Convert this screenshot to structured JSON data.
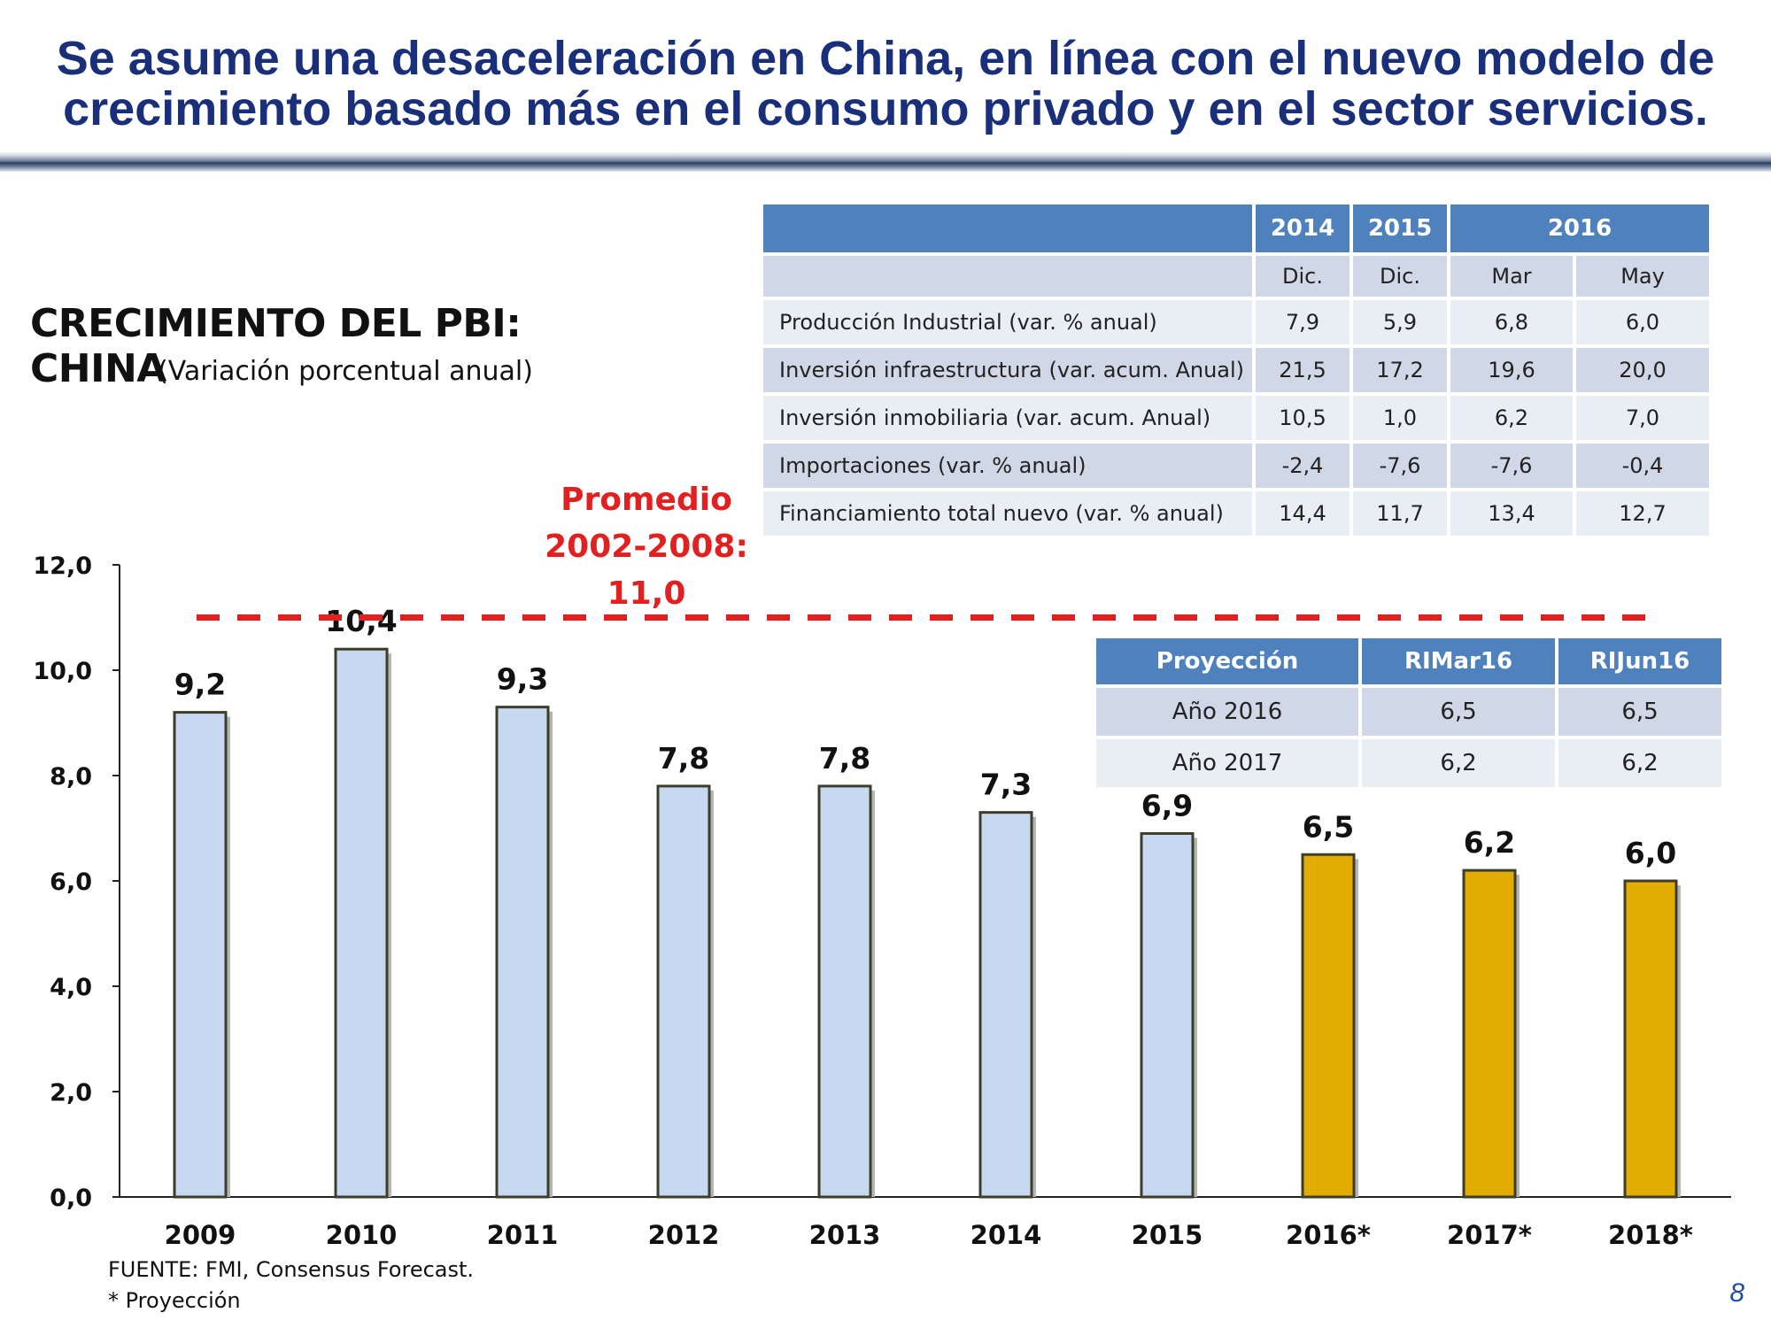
{
  "headline": {
    "line1": "Se asume una desaceleración en China, en línea con el nuevo modelo de",
    "line2": "crecimiento basado más en el consumo privado y en el sector servicios."
  },
  "chart_title": "CRECIMIENTO DEL PBI: CHINA",
  "chart_subtitle": "(Variación porcentual anual)",
  "average": {
    "line1": "Promedio",
    "line2": "2002-2008:",
    "line3": "11,0",
    "value": 11.0
  },
  "chart_data": {
    "type": "bar",
    "title": "CRECIMIENTO DEL PBI: CHINA",
    "subtitle": "(Variación porcentual anual)",
    "categories": [
      "2009",
      "2010",
      "2011",
      "2012",
      "2013",
      "2014",
      "2015",
      "2016*",
      "2017*",
      "2018*"
    ],
    "values": [
      9.2,
      10.4,
      9.3,
      7.8,
      7.8,
      7.3,
      6.9,
      6.5,
      6.2,
      6.0
    ],
    "value_labels": [
      "9,2",
      "10,4",
      "9,3",
      "7,8",
      "7,8",
      "7,3",
      "6,9",
      "6,5",
      "6,2",
      "6,0"
    ],
    "projected": [
      false,
      false,
      false,
      false,
      false,
      false,
      false,
      true,
      true,
      true
    ],
    "y_ticks": [
      0,
      2,
      4,
      6,
      8,
      10,
      12
    ],
    "y_tick_labels": [
      "0,0",
      "2,0",
      "4,0",
      "6,0",
      "8,0",
      "10,0",
      "12,0"
    ],
    "ylim": [
      0,
      12
    ],
    "reference_line": {
      "label": "Promedio 2002-2008: 11,0",
      "value": 11.0
    },
    "colors": {
      "historical": "#c6d9f1",
      "projected": "#e3ac00",
      "bar_border": "#3d3d29",
      "reference": "#e32020"
    },
    "xlabel": "",
    "ylabel": ""
  },
  "indicators": {
    "years": [
      "2014",
      "2015",
      "2016"
    ],
    "subheaders": [
      "Dic.",
      "Dic.",
      "Mar",
      "May"
    ],
    "rows": [
      {
        "label": "Producción Industrial (var. % anual)",
        "values": [
          "7,9",
          "5,9",
          "6,8",
          "6,0"
        ]
      },
      {
        "label": "Inversión infraestructura (var. acum. Anual)",
        "values": [
          "21,5",
          "17,2",
          "19,6",
          "20,0"
        ]
      },
      {
        "label": "Inversión inmobiliaria (var. acum. Anual)",
        "values": [
          "10,5",
          "1,0",
          "6,2",
          "7,0"
        ]
      },
      {
        "label": "Importaciones (var. % anual)",
        "values": [
          "-2,4",
          "-7,6",
          "-7,6",
          "-0,4"
        ]
      },
      {
        "label": "Financiamiento total nuevo (var. % anual)",
        "values": [
          "14,4",
          "11,7",
          "13,4",
          "12,7"
        ]
      }
    ]
  },
  "projection": {
    "headers": [
      "Proyección",
      "RIMar16",
      "RIJun16"
    ],
    "rows": [
      {
        "label": "Año 2016",
        "values": [
          "6,5",
          "6,5"
        ]
      },
      {
        "label": "Año 2017",
        "values": [
          "6,2",
          "6,2"
        ]
      }
    ]
  },
  "footer": {
    "source": "FUENTE: FMI, Consensus Forecast.",
    "note": "* Proyección"
  },
  "page_number": "8"
}
